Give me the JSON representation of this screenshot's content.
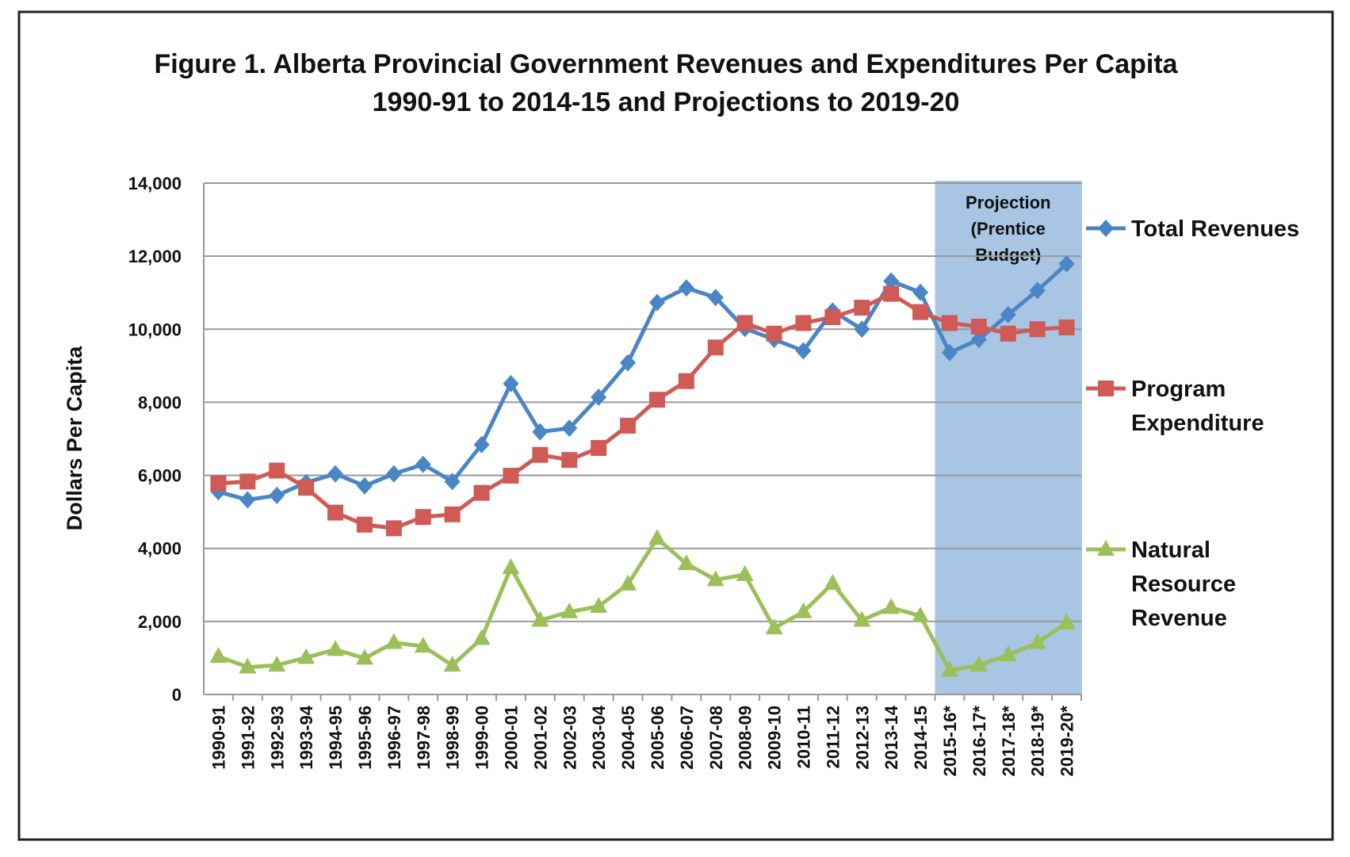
{
  "chart_data": {
    "type": "line",
    "title": "Figure 1. Alberta Provincial Government Revenues and Expenditures Per Capita",
    "subtitle": "1990-91 to 2014-15 and Projections to 2019-20",
    "xlabel": "",
    "ylabel": "Dollars Per Capita",
    "ylim": [
      0,
      14000
    ],
    "yticks": [
      "0",
      "2,000",
      "4,000",
      "6,000",
      "8,000",
      "10,000",
      "12,000",
      "14,000"
    ],
    "grid": true,
    "legend_position": "right",
    "categories": [
      "1990-91",
      "1991-92",
      "1992-93",
      "1993-94",
      "1994-95",
      "1995-96",
      "1996-97",
      "1997-98",
      "1998-99",
      "1999-00",
      "2000-01",
      "2001-02",
      "2002-03",
      "2003-04",
      "2004-05",
      "2005-06",
      "2006-07",
      "2007-08",
      "2008-09",
      "2009-10",
      "2010-11",
      "2011-12",
      "2012-13",
      "2013-14",
      "2014-15",
      "2015-16*",
      "2016-17*",
      "2017-18*",
      "2018-19*",
      "2019-20*"
    ],
    "projection_annotation": {
      "lines": [
        "Projection",
        "(Prentice",
        "Budget)"
      ],
      "from": "2015-16*",
      "to": "2019-20*",
      "color": "#a8c5e3"
    },
    "series": [
      {
        "name": "Total Revenues",
        "color": "#4a86c6",
        "marker": "diamond",
        "values": [
          5550,
          5330,
          5450,
          5800,
          6040,
          5710,
          6040,
          6300,
          5830,
          6840,
          8510,
          7190,
          7290,
          8140,
          9080,
          10730,
          11130,
          10870,
          10020,
          9720,
          9410,
          10500,
          10000,
          11320,
          11010,
          9360,
          9720,
          10400,
          11060,
          11790
        ]
      },
      {
        "name": "Program Expenditure",
        "color": "#d05a55",
        "marker": "square",
        "values": [
          5780,
          5830,
          6130,
          5660,
          4980,
          4650,
          4550,
          4860,
          4930,
          5520,
          5990,
          6560,
          6420,
          6750,
          7360,
          8070,
          8580,
          9500,
          10170,
          9880,
          10170,
          10330,
          10590,
          10970,
          10470,
          10170,
          10070,
          9880,
          10000,
          10050
        ]
      },
      {
        "name": "Natural Resource Revenue",
        "color": "#9bc05a",
        "marker": "triangle",
        "values": [
          1040,
          750,
          800,
          1010,
          1230,
          990,
          1420,
          1320,
          800,
          1530,
          3470,
          2030,
          2260,
          2410,
          3020,
          4270,
          3580,
          3140,
          3280,
          1820,
          2260,
          3040,
          2030,
          2380,
          2150,
          660,
          800,
          1080,
          1420,
          1960
        ]
      }
    ],
    "legend_lines": [
      [
        "Total Revenues"
      ],
      [
        "Program",
        "Expenditure"
      ],
      [
        "Natural",
        "Resource",
        "Revenue"
      ]
    ]
  }
}
